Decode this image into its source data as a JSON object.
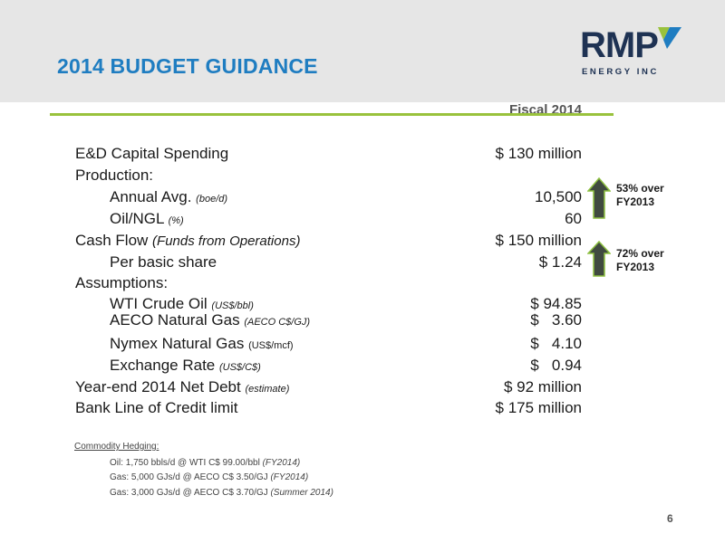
{
  "slide": {
    "title": "2014 BUDGET GUIDANCE",
    "page_number": "6",
    "column_header": "Fiscal 2014"
  },
  "logo": {
    "name": "RMP",
    "tagline": "ENERGY INC",
    "colors": {
      "text": "#1e3253",
      "mark_green": "#99c23c",
      "mark_blue": "#1f7dc1"
    }
  },
  "colors": {
    "title": "#1f7dc1",
    "rule": "#99c23c",
    "header_bg": "#e6e6e6",
    "arrow": "#404a40"
  },
  "rows": [
    {
      "label": "E&D Capital Spending",
      "note": "",
      "value": "$ 130 million"
    },
    {
      "label": "Production:",
      "note": "",
      "value": ""
    },
    {
      "label": "Annual Avg.",
      "note": "(boe/d)",
      "value": "10,500"
    },
    {
      "label": "Oil/NGL",
      "note": "(%)",
      "value": "60"
    },
    {
      "label": "Cash Flow",
      "note": "(Funds from Operations)",
      "value": "$ 150 million"
    },
    {
      "label": "Per basic share",
      "note": "",
      "value": "$ 1.24"
    },
    {
      "label": "Assumptions:",
      "note": "",
      "value": ""
    },
    {
      "label": "WTI Crude Oil",
      "note": "(US$/bbl)",
      "value": "$ 94.85"
    },
    {
      "label": "AECO Natural Gas",
      "note": "(AECO C$/GJ)",
      "value": "$   3.60"
    },
    {
      "label": "Nymex Natural Gas",
      "note": "(US$/mcf)",
      "value": "$   4.10"
    },
    {
      "label": "Exchange Rate",
      "note": "(US$/C$)",
      "value": "$   0.94"
    },
    {
      "label": "Year-end 2014 Net Debt",
      "note": "(estimate)",
      "value": "$ 92 million"
    },
    {
      "label": "Bank Line of Credit limit",
      "note": "",
      "value": "$ 175 million"
    }
  ],
  "callouts": [
    {
      "line1": "53% over",
      "line2": "FY2013"
    },
    {
      "line1": "72% over",
      "line2": "FY2013"
    }
  ],
  "hedging": {
    "title": "Commodity Hedging:",
    "items": [
      {
        "text": "Oil: 1,750 bbls/d @ WTI C$ 99.00/bbl",
        "period": "(FY2014)"
      },
      {
        "text": "Gas: 5,000 GJs/d @ AECO C$ 3.50/GJ",
        "period": "(FY2014)"
      },
      {
        "text": "Gas: 3,000 GJs/d @ AECO C$ 3.70/GJ",
        "period": "(Summer 2014)"
      }
    ]
  }
}
